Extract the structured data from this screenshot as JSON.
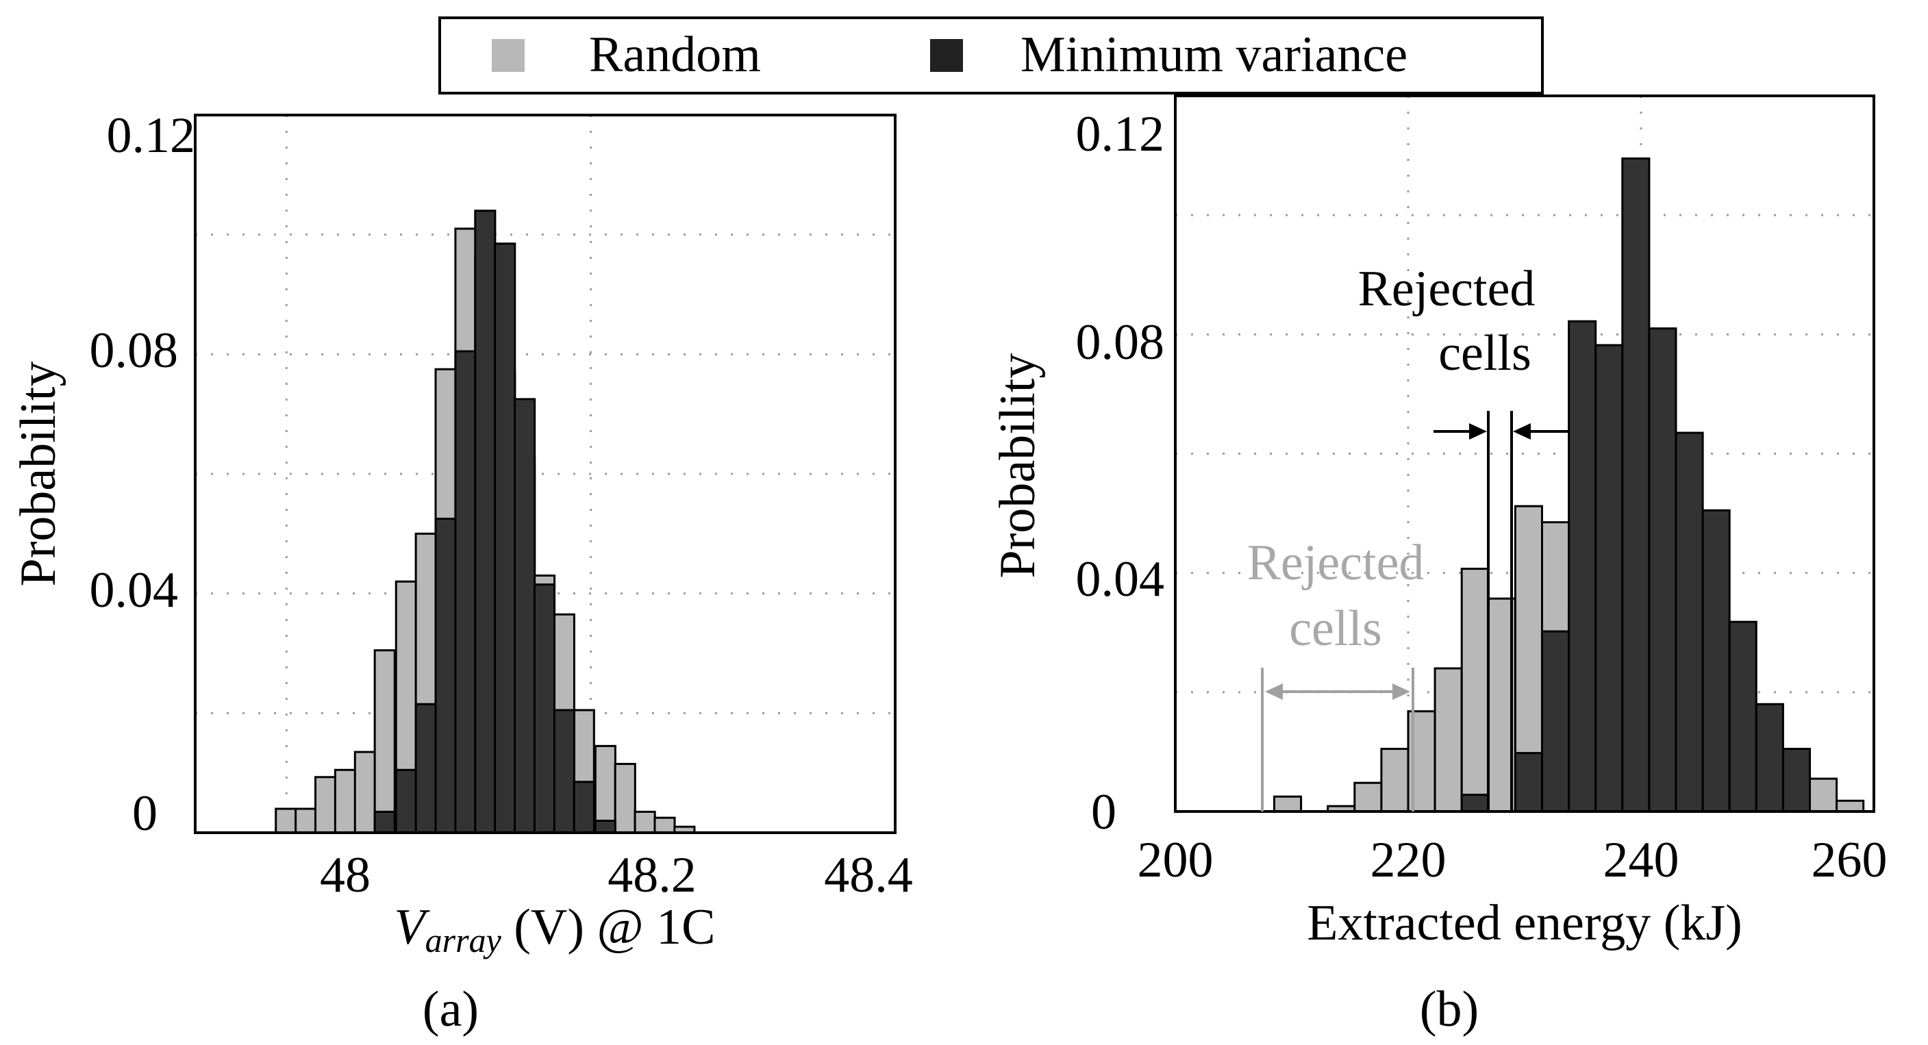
{
  "figure": {
    "legend": {
      "random_label": "Random",
      "minvar_label": "Minimum variance",
      "random_color": "#b8b8b8",
      "minvar_color": "#333333"
    }
  },
  "chart_data": [
    {
      "type": "bar",
      "panel_label": "(a)",
      "title": "",
      "xlabel_var": "V",
      "xlabel_sub": "array",
      "xlabel_rest": " (V) @ 1C",
      "ylabel": "Probability",
      "xlim": [
        47.94,
        48.4
      ],
      "ylim": [
        0,
        0.12
      ],
      "xticks": [
        48,
        48.2,
        48.4
      ],
      "xtick_labels": [
        "48",
        "48.2",
        "48.4"
      ],
      "yticks": [
        0,
        0.04,
        0.08,
        0.12
      ],
      "ytick_labels": [
        "0",
        "0.04",
        "0.08",
        "0.12"
      ],
      "grid": true,
      "bin_width": 0.0131,
      "series": [
        {
          "name": "Random",
          "bins": [
            [
              47.993,
              0.004
            ],
            [
              48.006,
              0.004
            ],
            [
              48.019,
              0.0093
            ],
            [
              48.032,
              0.0105
            ],
            [
              48.045,
              0.0135
            ],
            [
              48.058,
              0.0305
            ],
            [
              48.072,
              0.042
            ],
            [
              48.085,
              0.05
            ],
            [
              48.098,
              0.0775
            ],
            [
              48.111,
              0.101
            ],
            [
              48.124,
              0.0965
            ],
            [
              48.137,
              0.077
            ],
            [
              48.15,
              0.0625
            ],
            [
              48.163,
              0.043
            ],
            [
              48.176,
              0.0365
            ],
            [
              48.189,
              0.0205
            ],
            [
              48.203,
              0.0145
            ],
            [
              48.216,
              0.0115
            ],
            [
              48.229,
              0.0035
            ],
            [
              48.242,
              0.0025
            ],
            [
              48.255,
              0.001
            ]
          ]
        },
        {
          "name": "Minimum variance",
          "bins": [
            [
              48.058,
              0.0035
            ],
            [
              48.072,
              0.0105
            ],
            [
              48.085,
              0.0215
            ],
            [
              48.098,
              0.0525
            ],
            [
              48.111,
              0.0805
            ],
            [
              48.124,
              0.104
            ],
            [
              48.137,
              0.0985
            ],
            [
              48.15,
              0.0725
            ],
            [
              48.163,
              0.0415
            ],
            [
              48.176,
              0.0205
            ],
            [
              48.189,
              0.0085
            ],
            [
              48.203,
              0.002
            ]
          ]
        }
      ]
    },
    {
      "type": "bar",
      "panel_label": "(b)",
      "title": "",
      "xlabel": "Extracted energy (kJ)",
      "ylabel": "Probability",
      "xlim": [
        200,
        260
      ],
      "ylim": [
        0,
        0.12
      ],
      "xticks": [
        200,
        220,
        240,
        260
      ],
      "xtick_labels": [
        "200",
        "220",
        "240",
        "260"
      ],
      "yticks": [
        0,
        0.04,
        0.08,
        0.12
      ],
      "ytick_labels": [
        "0",
        "0.04",
        "0.08",
        "0.12"
      ],
      "grid": true,
      "bin_width": 2.3,
      "series": [
        {
          "name": "Random",
          "bins": [
            [
              208.5,
              0.0025
            ],
            [
              213.1,
              0.0009
            ],
            [
              215.4,
              0.0048
            ],
            [
              217.7,
              0.0105
            ],
            [
              220.0,
              0.0168
            ],
            [
              222.3,
              0.024
            ],
            [
              224.6,
              0.0407
            ],
            [
              226.9,
              0.0357
            ],
            [
              229.2,
              0.0512
            ],
            [
              231.5,
              0.0485
            ],
            [
              233.8,
              0.0345
            ],
            [
              236.1,
              0.0305
            ],
            [
              238.4,
              0.0222
            ],
            [
              240.7,
              0.0148
            ],
            [
              243.0,
              0.009
            ],
            [
              245.3,
              0.0075
            ],
            [
              247.6,
              0.0035
            ],
            [
              249.9,
              0.002
            ],
            [
              252.2,
              0.0065
            ],
            [
              254.5,
              0.0055
            ],
            [
              256.8,
              0.0018
            ]
          ]
        },
        {
          "name": "Minimum variance",
          "bins": [
            [
              224.6,
              0.0028
            ],
            [
              229.2,
              0.0098
            ],
            [
              231.5,
              0.0302
            ],
            [
              233.8,
              0.0822
            ],
            [
              236.1,
              0.0782
            ],
            [
              238.4,
              0.1095
            ],
            [
              240.7,
              0.081
            ],
            [
              243.0,
              0.0635
            ],
            [
              245.3,
              0.0505
            ],
            [
              247.6,
              0.0318
            ],
            [
              249.9,
              0.018
            ],
            [
              252.2,
              0.0105
            ]
          ]
        }
      ],
      "annotations": {
        "rejected_minvar": {
          "line1": "Rejected",
          "line2": "cells",
          "x_range": [
            226.3,
            228.3
          ]
        },
        "rejected_random": {
          "line1": "Rejected",
          "line2": "cells",
          "x_range": [
            207.3,
            219.3
          ]
        }
      }
    }
  ]
}
